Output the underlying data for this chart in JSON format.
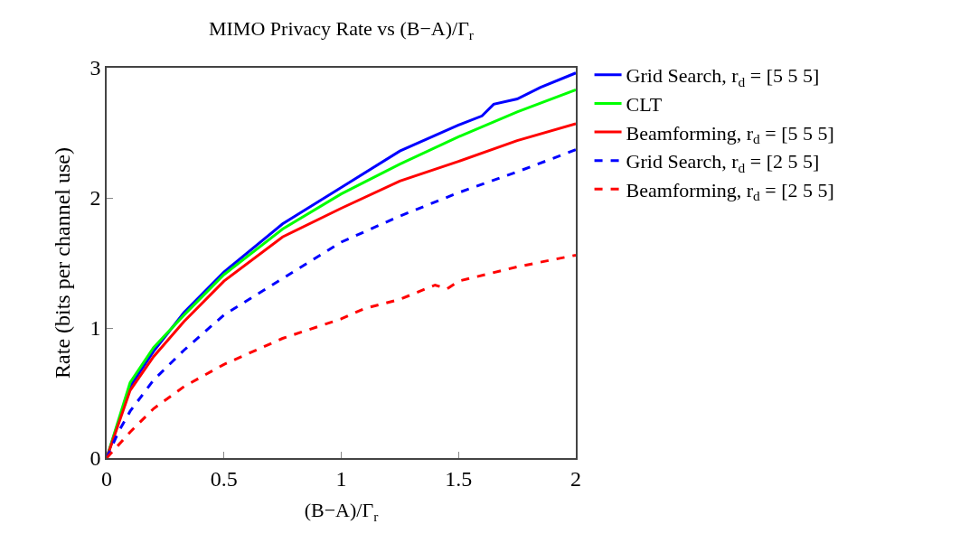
{
  "chart_data": {
    "type": "line",
    "title": "MIMO Privacy Rate vs (B−A)/Γ$_{r}$",
    "xlabel": "(B−A)/Γ$_{r}$",
    "ylabel": "Rate (bits per channel use)",
    "xlim": [
      0,
      2
    ],
    "xticks": [
      0,
      0.5,
      1,
      1.5,
      2
    ],
    "ylim": [
      0,
      3
    ],
    "yticks": [
      0,
      1,
      2,
      3
    ],
    "legend": "top right",
    "marker": "none",
    "series": [
      {
        "name": "Grid Search, r$_{d}$ = [5 5 5]",
        "color": "#0000ff",
        "line_style": "solid",
        "x": [
          0,
          0.1,
          0.2,
          0.33,
          0.5,
          0.75,
          1,
          1.25,
          1.5,
          1.6,
          1.65,
          1.75,
          1.85,
          2
        ],
        "values": [
          0,
          0.55,
          0.82,
          1.12,
          1.43,
          1.8,
          2.08,
          2.36,
          2.56,
          2.63,
          2.72,
          2.76,
          2.85,
          2.96
        ]
      },
      {
        "name": "CLT",
        "color": "#00ff00",
        "line_style": "solid",
        "x": [
          0,
          0.1,
          0.2,
          0.33,
          0.5,
          0.75,
          1,
          1.25,
          1.5,
          1.75,
          2
        ],
        "values": [
          0,
          0.58,
          0.85,
          1.1,
          1.41,
          1.76,
          2.03,
          2.26,
          2.47,
          2.66,
          2.83
        ]
      },
      {
        "name": "Beamforming, r$_{d}$ = [5 5 5]",
        "color": "#ff0000",
        "line_style": "solid",
        "x": [
          0,
          0.1,
          0.2,
          0.33,
          0.5,
          0.75,
          1,
          1.25,
          1.5,
          1.75,
          2
        ],
        "values": [
          0,
          0.52,
          0.78,
          1.05,
          1.36,
          1.7,
          1.92,
          2.13,
          2.28,
          2.44,
          2.57
        ]
      },
      {
        "name": "Grid Search, r$_{d}$ = [2 5 5]",
        "color": "#0000ff",
        "line_style": "dashed",
        "x": [
          0,
          0.05,
          0.1,
          0.2,
          0.33,
          0.5,
          0.75,
          1,
          1.25,
          1.5,
          1.75,
          2
        ],
        "values": [
          0,
          0.2,
          0.36,
          0.6,
          0.83,
          1.1,
          1.38,
          1.66,
          1.86,
          2.04,
          2.2,
          2.37
        ]
      },
      {
        "name": "Beamforming, r$_{d}$ = [2 5 5]",
        "color": "#ff0000",
        "line_style": "dashed",
        "x": [
          0,
          0.1,
          0.2,
          0.33,
          0.5,
          0.75,
          1,
          1.1,
          1.25,
          1.4,
          1.45,
          1.5,
          1.75,
          2
        ],
        "values": [
          0,
          0.2,
          0.38,
          0.55,
          0.72,
          0.92,
          1.07,
          1.15,
          1.22,
          1.33,
          1.3,
          1.36,
          1.47,
          1.56
        ]
      }
    ]
  }
}
